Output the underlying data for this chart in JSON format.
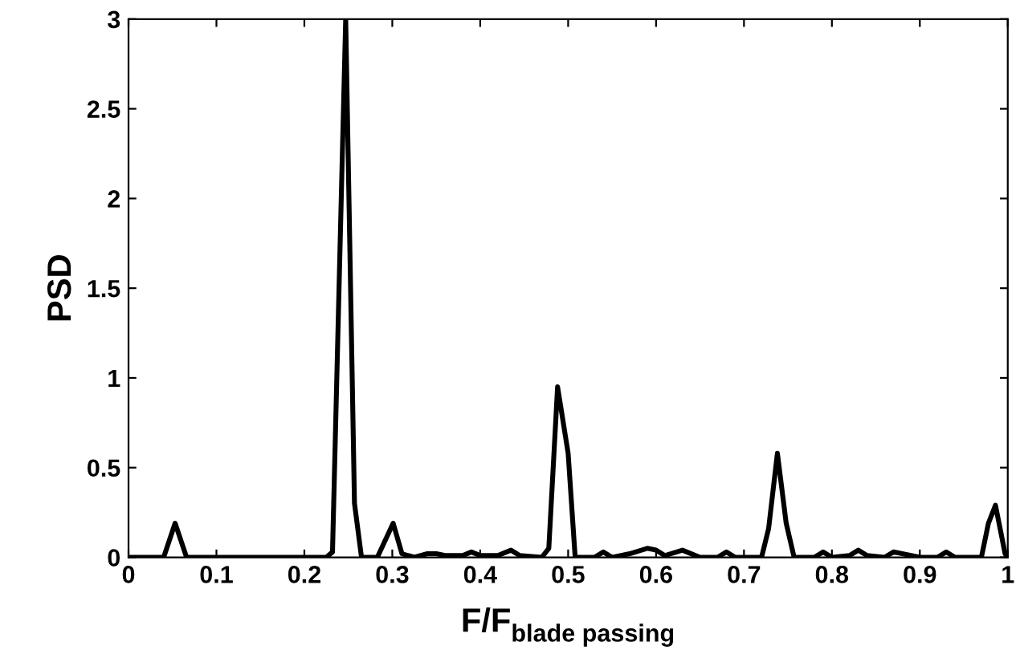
{
  "chart_data": {
    "type": "line",
    "xlabel": "F/F$_{blade passing}$",
    "ylabel": "PSD",
    "xlim": [
      0,
      1
    ],
    "ylim": [
      0,
      3
    ],
    "xticks": [
      0,
      0.1,
      0.2,
      0.3,
      0.4,
      0.5,
      0.6,
      0.7,
      0.8,
      0.9,
      1
    ],
    "yticks": [
      0,
      0.5,
      1,
      1.5,
      2,
      2.5,
      3
    ],
    "grid": false,
    "legend": false,
    "marker": "none",
    "line_style": "solid",
    "series": [
      {
        "color": "#000000",
        "x": [
          0,
          0.04,
          0.053,
          0.066,
          0.225,
          0.232,
          0.247,
          0.257,
          0.265,
          0.283,
          0.301,
          0.311,
          0.325,
          0.34,
          0.35,
          0.36,
          0.38,
          0.39,
          0.4,
          0.42,
          0.435,
          0.445,
          0.47,
          0.478,
          0.488,
          0.5,
          0.508,
          0.53,
          0.54,
          0.55,
          0.57,
          0.59,
          0.6,
          0.61,
          0.63,
          0.64,
          0.65,
          0.67,
          0.68,
          0.69,
          0.72,
          0.728,
          0.738,
          0.748,
          0.757,
          0.78,
          0.79,
          0.8,
          0.82,
          0.83,
          0.84,
          0.86,
          0.87,
          0.88,
          0.9,
          0.92,
          0.93,
          0.94,
          0.97,
          0.978,
          0.986,
          0.997,
          1
        ],
        "values": [
          0,
          0,
          0.19,
          0,
          0,
          0.03,
          3,
          0.3,
          0,
          0,
          0.19,
          0.02,
          0,
          0.02,
          0.02,
          0.01,
          0.01,
          0.03,
          0.01,
          0.01,
          0.04,
          0.01,
          0,
          0.05,
          0.95,
          0.58,
          0,
          0,
          0.03,
          0,
          0.02,
          0.05,
          0.04,
          0.01,
          0.04,
          0.02,
          0,
          0,
          0.03,
          0,
          0,
          0.16,
          0.58,
          0.19,
          0,
          0,
          0.03,
          0,
          0.01,
          0.04,
          0.01,
          0,
          0.03,
          0.02,
          0,
          0,
          0.03,
          0,
          0,
          0.19,
          0.29,
          0.02,
          0
        ]
      }
    ]
  }
}
